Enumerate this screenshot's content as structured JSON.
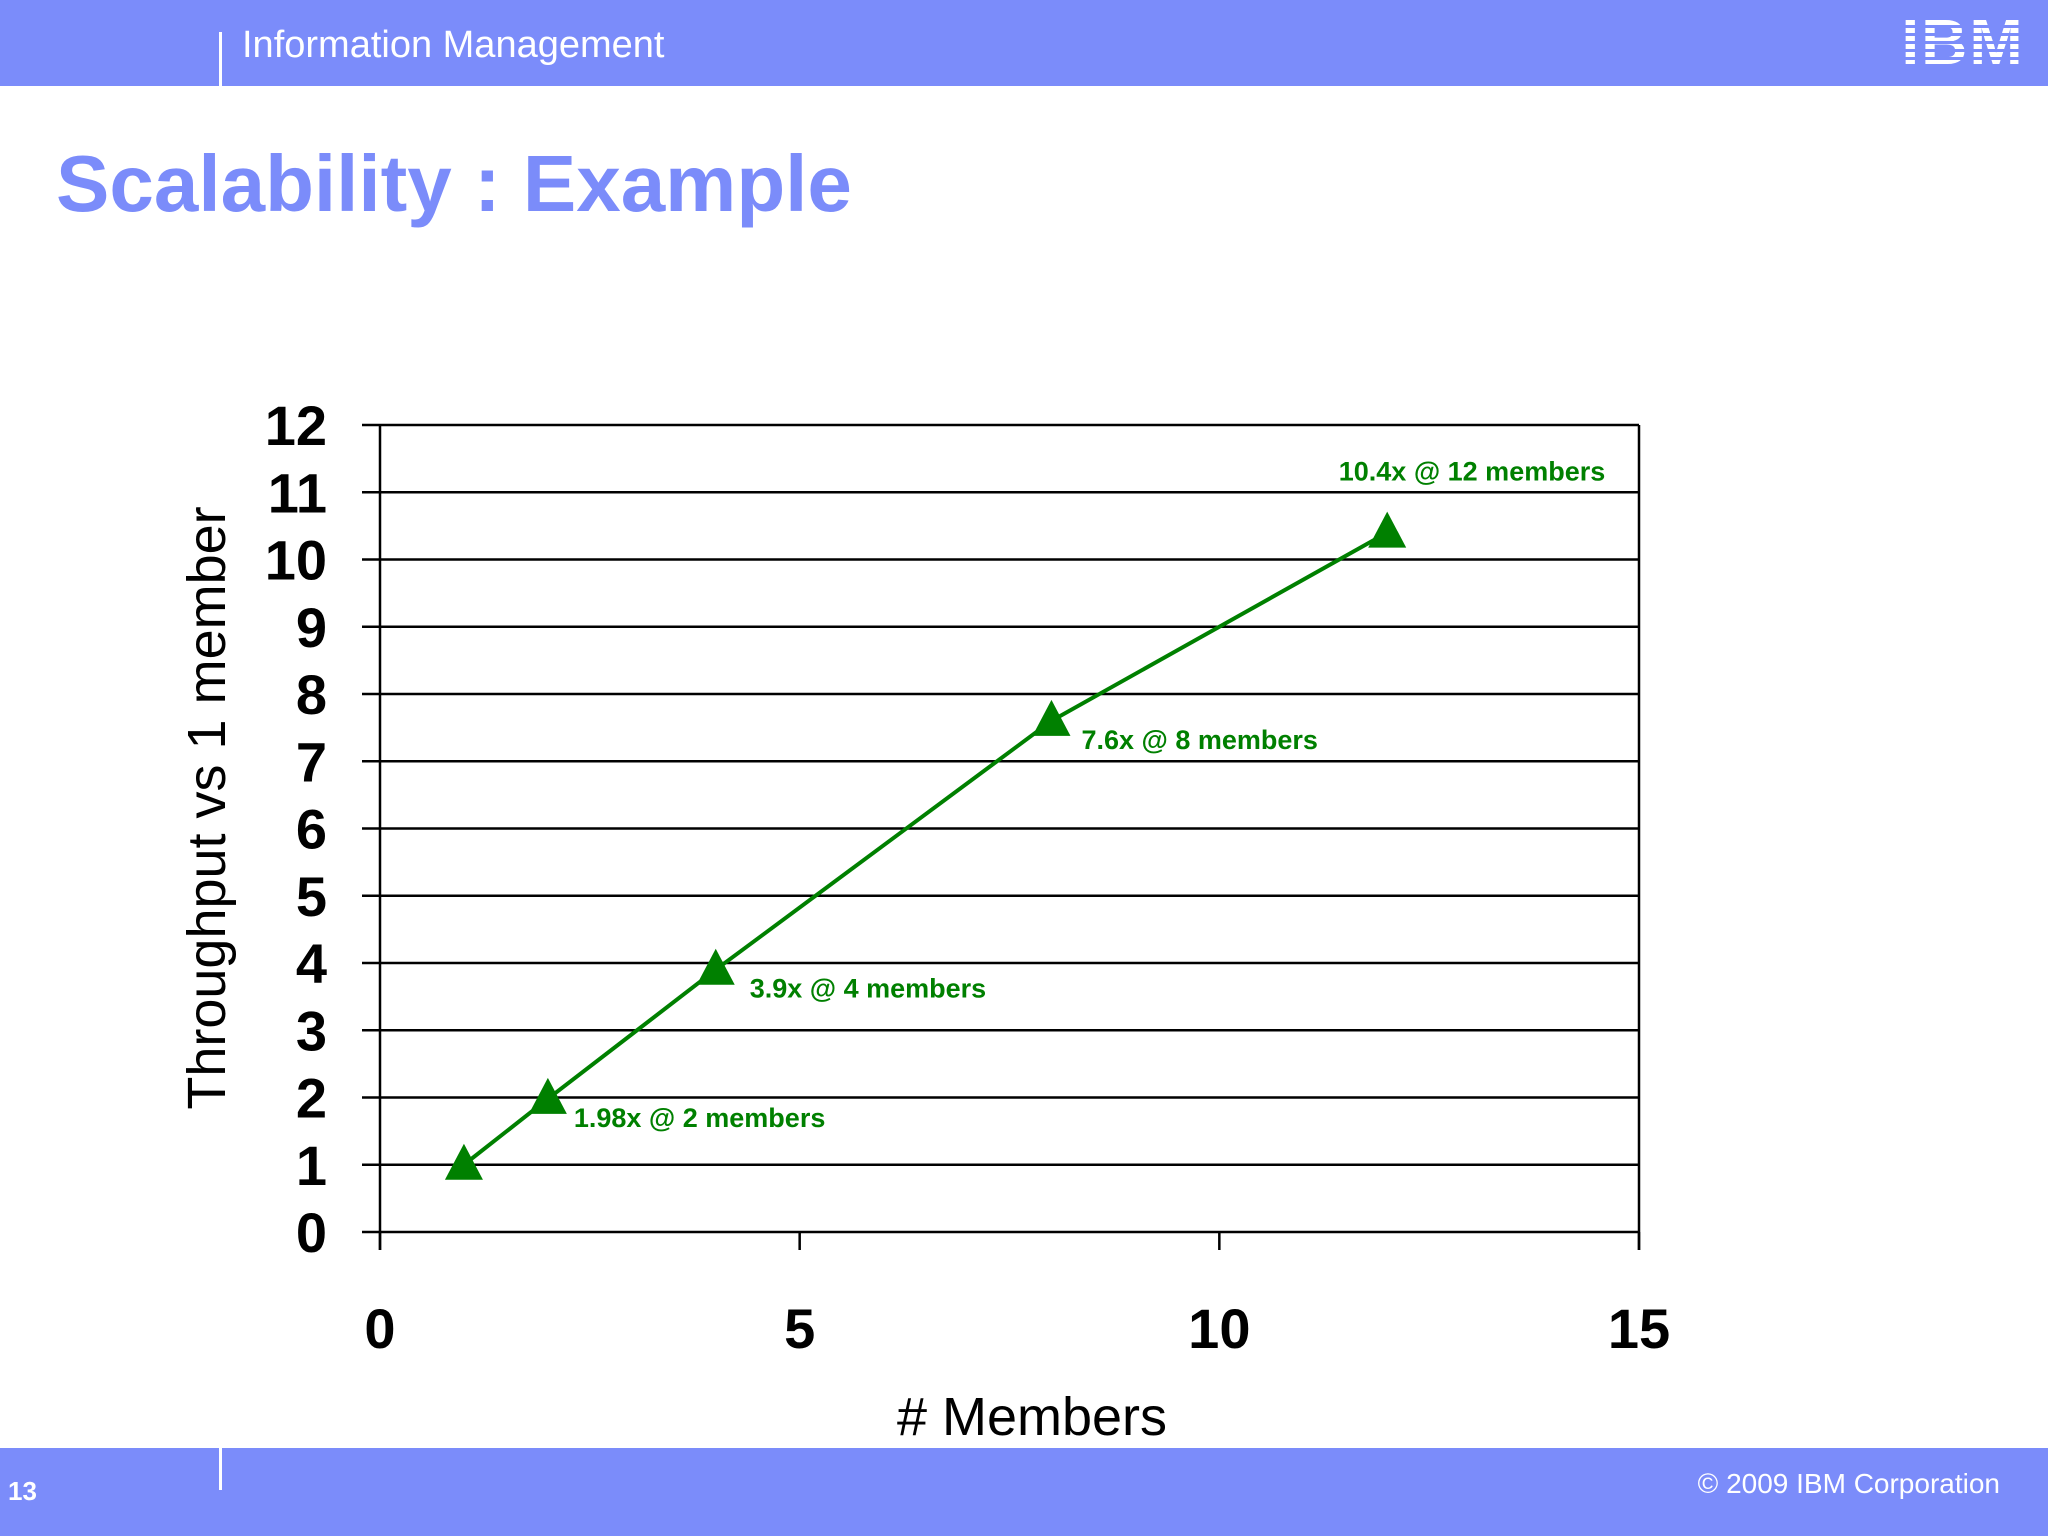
{
  "header": {
    "title": "Information Management",
    "logo_text": "IBM"
  },
  "slide": {
    "title": "Scalability : Example"
  },
  "footer": {
    "page_number": "13",
    "copyright": "© 2009 IBM Corporation"
  },
  "colors": {
    "accent": "#7b8cfa",
    "series": "#008000",
    "axis": "#000000"
  },
  "chart_data": {
    "type": "line",
    "xlabel": "# Members",
    "ylabel": "Throughput vs 1 member",
    "xlim": [
      0,
      15
    ],
    "ylim": [
      0,
      12
    ],
    "xticks": [
      0,
      5,
      10,
      15
    ],
    "yticks": [
      0,
      1,
      2,
      3,
      4,
      5,
      6,
      7,
      8,
      9,
      10,
      11,
      12
    ],
    "grid": "horizontal",
    "legend": "none",
    "series": [
      {
        "marker": "triangle",
        "points": [
          {
            "x": 1,
            "y": 1
          },
          {
            "x": 2,
            "y": 1.98
          },
          {
            "x": 4,
            "y": 3.9
          },
          {
            "x": 8,
            "y": 7.6
          },
          {
            "x": 12,
            "y": 10.4
          }
        ]
      }
    ],
    "annotations": [
      {
        "x": 2,
        "y": 1.98,
        "text": "1.98x @ 2 members"
      },
      {
        "x": 4,
        "y": 3.9,
        "text": "3.9x @ 4 members"
      },
      {
        "x": 8,
        "y": 7.6,
        "text": "7.6x @ 8 members"
      },
      {
        "x": 12,
        "y": 10.4,
        "text": "10.4x @ 12 members"
      }
    ]
  }
}
